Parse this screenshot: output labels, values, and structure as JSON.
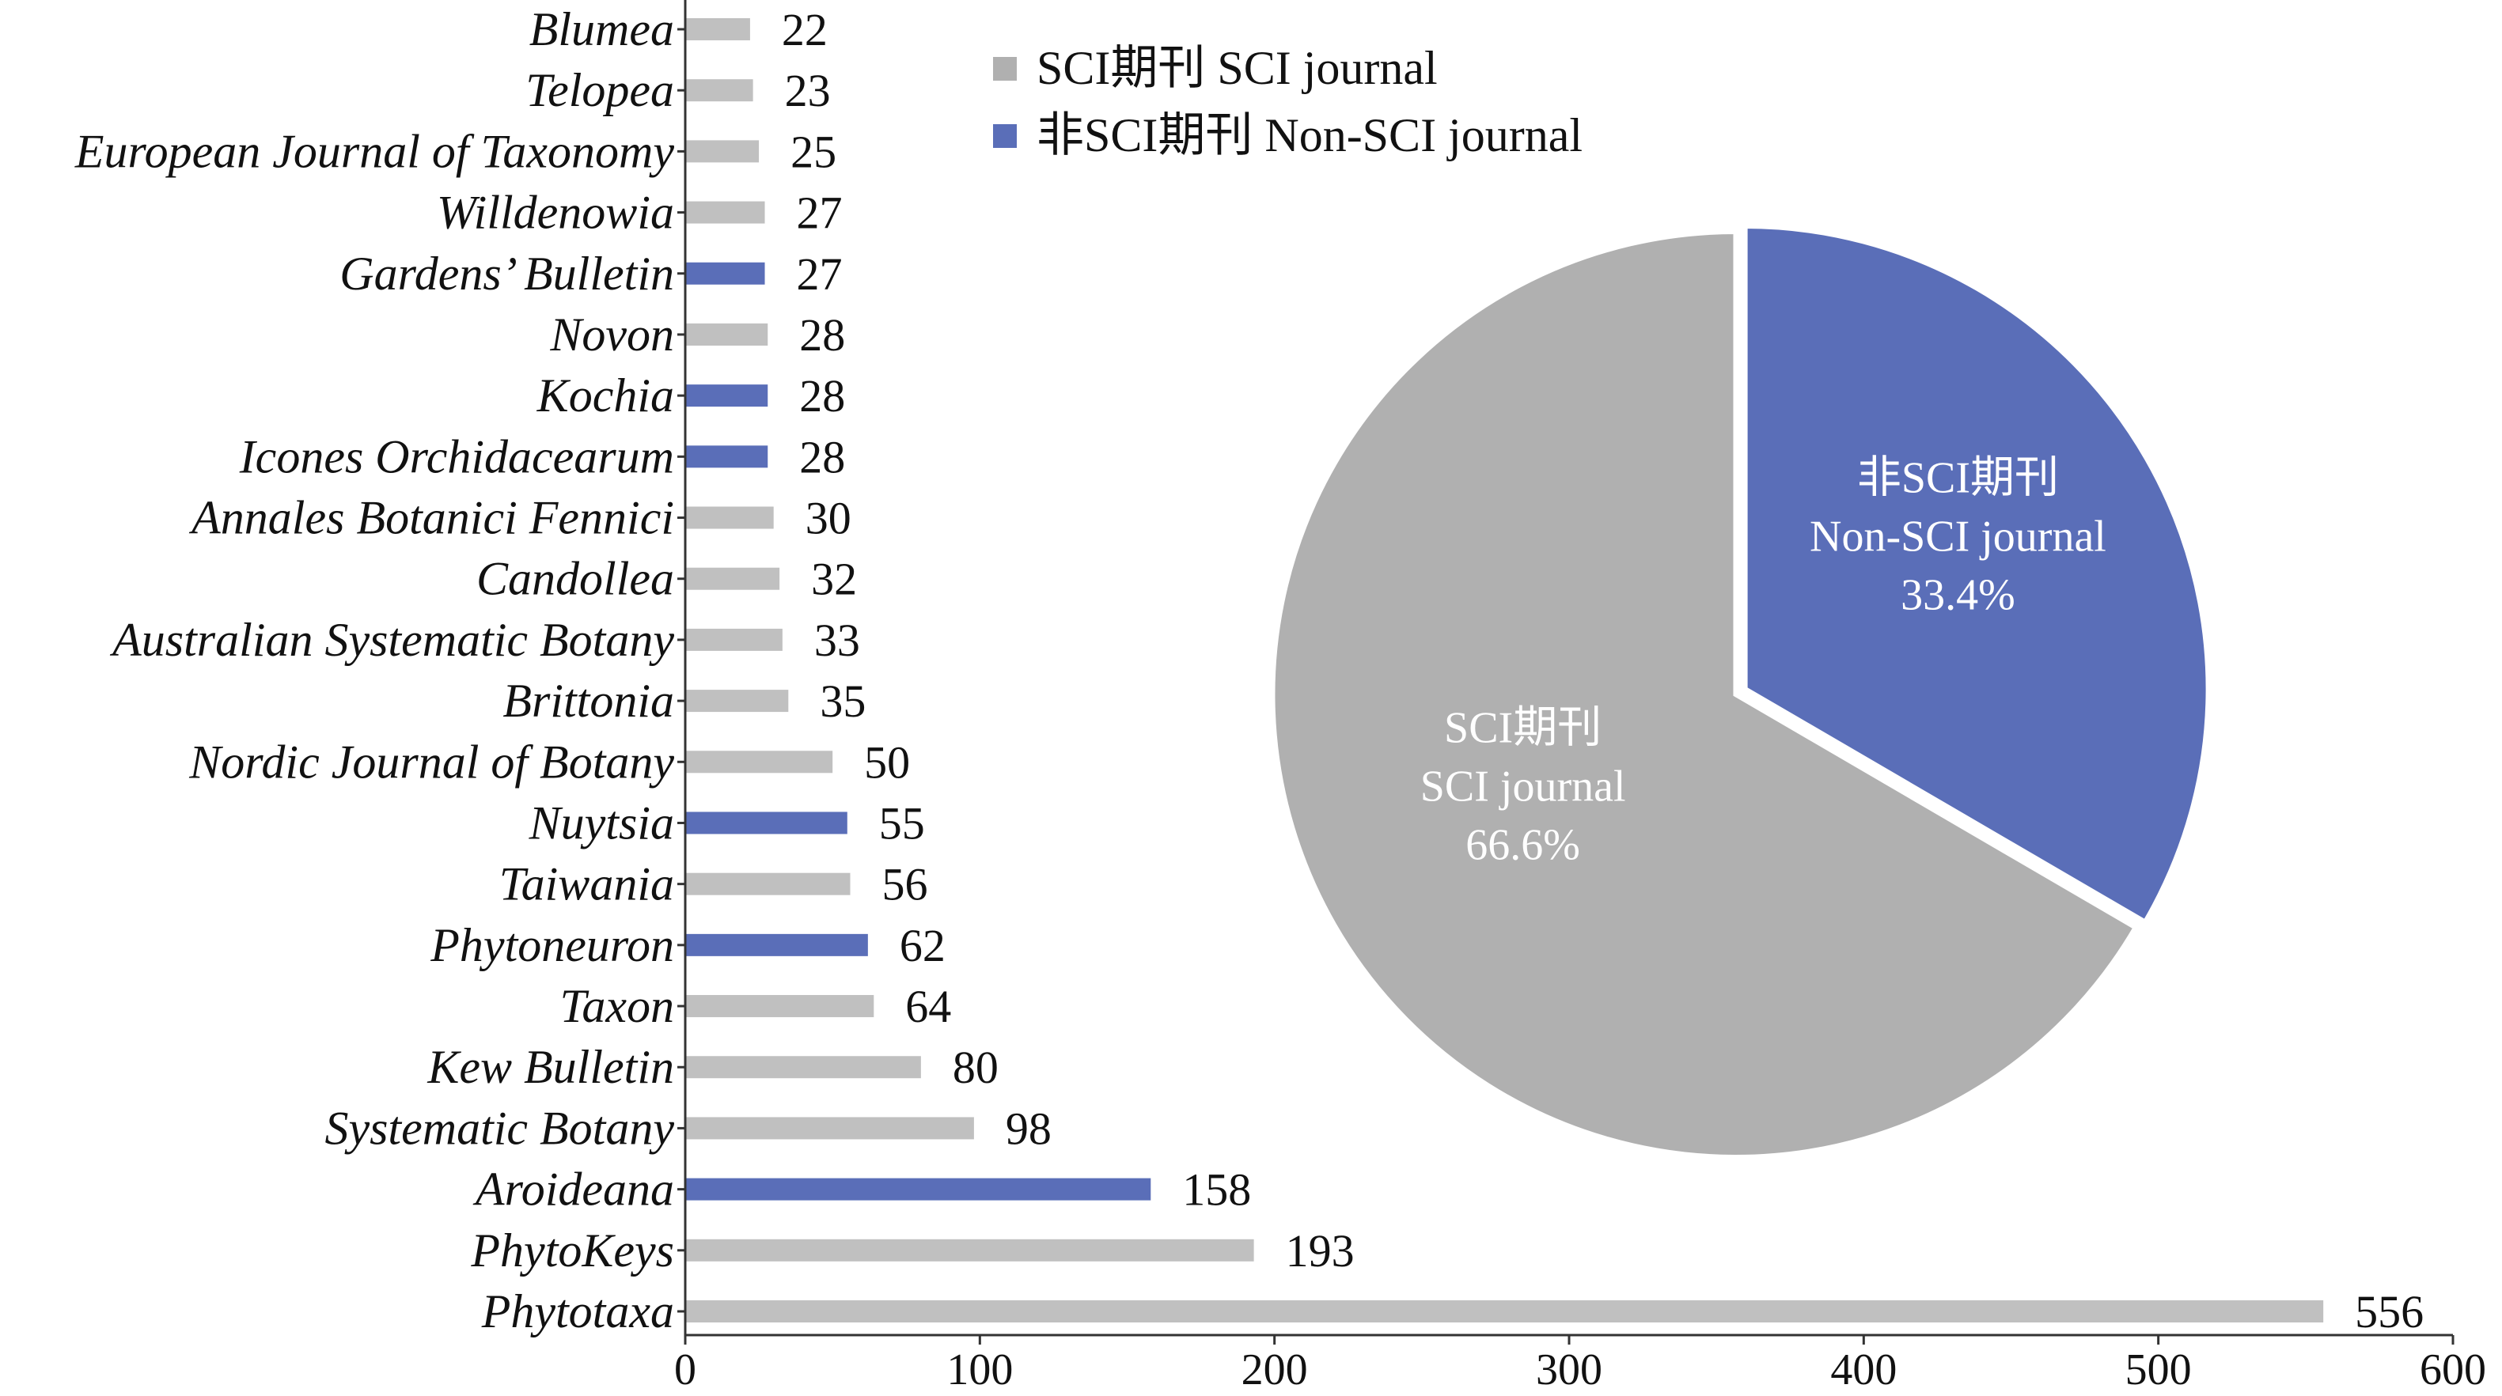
{
  "chart_data": [
    {
      "type": "bar",
      "orientation": "horizontal",
      "categories": [
        "Blumea",
        "Telopea",
        "European Journal of Taxonomy",
        "Willdenowia",
        "Gardens’ Bulletin",
        "Novon",
        "Kochia",
        "Icones Orchidacearum",
        "Annales Botanici Fennici",
        "Candollea",
        "Australian Systematic Botany",
        "Brittonia",
        "Nordic Journal of Botany",
        "Nuytsia",
        "Taiwania",
        "Phytoneuron",
        "Taxon",
        "Kew Bulletin",
        "Systematic Botany",
        "Aroideana",
        "PhytoKeys",
        "Phytotaxa"
      ],
      "values": [
        22,
        23,
        25,
        27,
        27,
        28,
        28,
        28,
        30,
        32,
        33,
        35,
        50,
        55,
        56,
        62,
        64,
        80,
        98,
        158,
        193,
        556
      ],
      "sci": [
        true,
        true,
        true,
        true,
        false,
        true,
        false,
        false,
        true,
        true,
        true,
        true,
        true,
        false,
        true,
        false,
        true,
        true,
        true,
        false,
        true,
        true
      ],
      "xlim": [
        0,
        600
      ],
      "xticks": [
        "0",
        "100",
        "200",
        "300",
        "400",
        "500",
        "600"
      ],
      "grid": false
    },
    {
      "type": "pie",
      "slices": [
        {
          "label_cn": "非SCI期刊",
          "label_en": "Non-SCI journal",
          "value": 33.4,
          "pct": "33.4%",
          "color": "#5a6eb8",
          "exploded": true
        },
        {
          "label_cn": "SCI期刊",
          "label_en": "SCI journal",
          "value": 66.6,
          "pct": "66.6%",
          "color": "#b0b0b0",
          "exploded": false
        }
      ]
    }
  ],
  "legend": {
    "placement": "top-center",
    "items": [
      {
        "label": "SCI期刊 SCI journal",
        "color": "#b0b0b0"
      },
      {
        "label": "非SCI期刊 Non-SCI journal",
        "color": "#5a6eb8"
      }
    ]
  },
  "colors": {
    "sci": "#c0c0c0",
    "non_sci": "#5a6eb8",
    "axis": "#333333"
  }
}
